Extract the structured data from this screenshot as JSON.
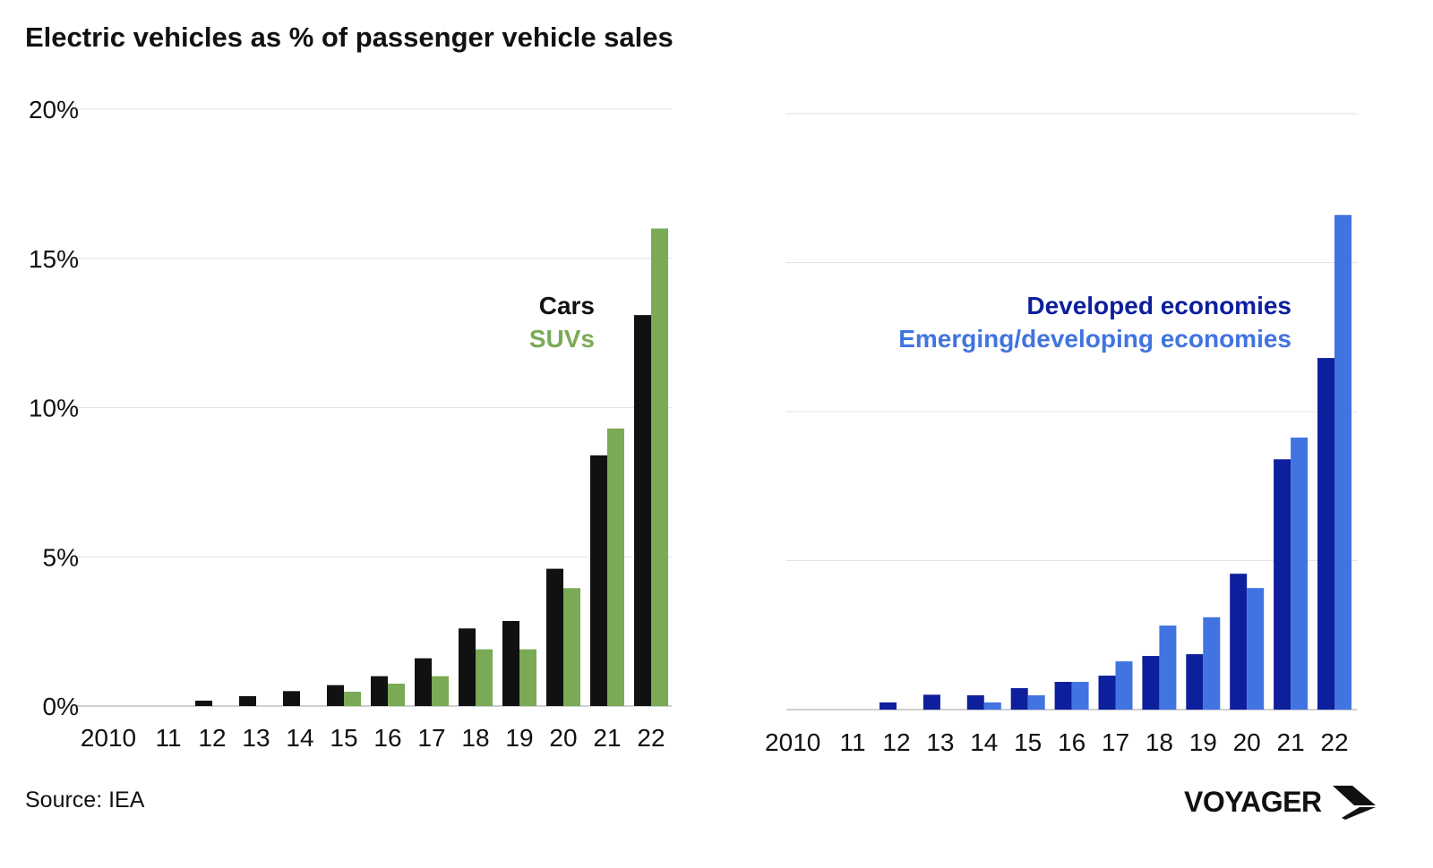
{
  "title": "Electric vehicles as % of passenger vehicle sales",
  "source": "Source: IEA",
  "logo": "VOYAGER",
  "chart_data": [
    {
      "type": "bar",
      "categories": [
        "2010",
        "11",
        "12",
        "13",
        "14",
        "15",
        "16",
        "17",
        "18",
        "19",
        "20",
        "21",
        "22"
      ],
      "ylim": [
        0,
        20
      ],
      "yticks": [
        "0%",
        "5%",
        "10%",
        "15%",
        "20%"
      ],
      "grid": true,
      "legend_placement": "top-right",
      "series": [
        {
          "name": "Cars",
          "color": "#111111",
          "values": [
            0,
            0,
            0.18,
            0.33,
            0.5,
            0.7,
            1.0,
            1.6,
            2.6,
            2.85,
            4.6,
            8.4,
            13.1
          ]
        },
        {
          "name": "SUVs",
          "color": "#7aaa55",
          "values": [
            0,
            0,
            0,
            0,
            0,
            0.48,
            0.75,
            1.0,
            1.9,
            1.9,
            3.95,
            9.3,
            16.0
          ]
        }
      ]
    },
    {
      "type": "bar",
      "categories": [
        "2010",
        "11",
        "12",
        "13",
        "14",
        "15",
        "16",
        "17",
        "18",
        "19",
        "20",
        "21",
        "22"
      ],
      "ylim": [
        0,
        20
      ],
      "grid": true,
      "legend_placement": "top-right",
      "series": [
        {
          "name": "Developed economies",
          "color": "#0d1f9c",
          "values": [
            0,
            0,
            0.24,
            0.5,
            0.48,
            0.72,
            0.93,
            1.14,
            1.8,
            1.86,
            4.56,
            8.4,
            11.8
          ]
        },
        {
          "name": "Emerging/developing economies",
          "color": "#4174e0",
          "values": [
            0,
            0,
            0,
            0,
            0.24,
            0.48,
            0.93,
            1.62,
            2.82,
            3.1,
            4.08,
            9.13,
            16.6
          ]
        }
      ]
    }
  ]
}
